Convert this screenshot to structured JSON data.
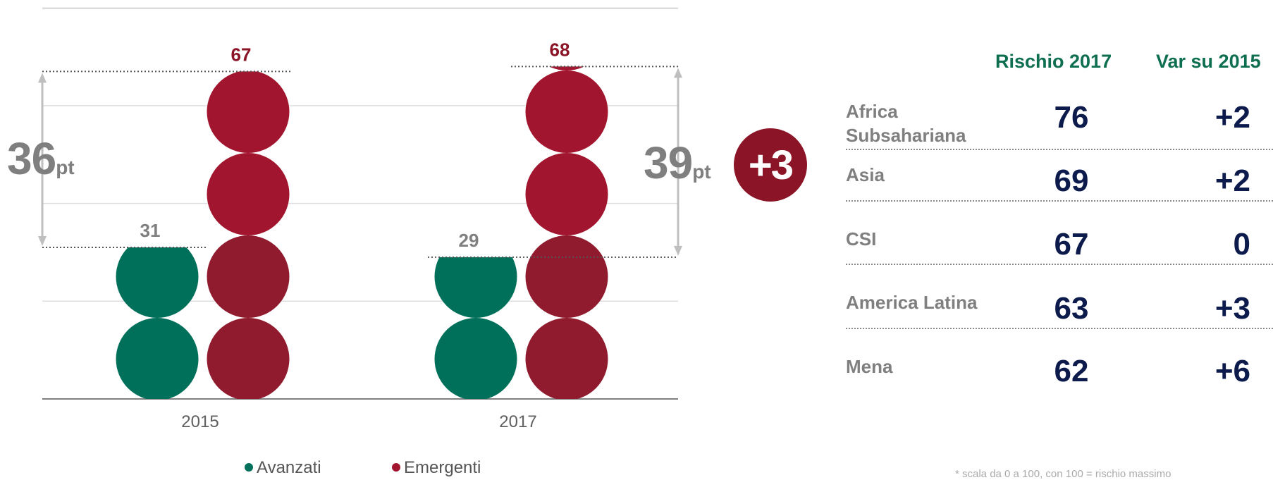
{
  "chart_data": {
    "type": "bar",
    "categories": [
      "2015",
      "2017"
    ],
    "series": [
      {
        "name": "Avanzati",
        "values": [
          31,
          29
        ],
        "color": "#00705a"
      },
      {
        "name": "Emergenti",
        "values": [
          67,
          68
        ],
        "color": "#a2152e"
      }
    ],
    "ylim": [
      0,
      80
    ],
    "grid": true,
    "legend": "bottom-center",
    "annotations": {
      "gap_2015": "36",
      "gap_2017": "39",
      "unit": "pt",
      "delta": "+3"
    }
  },
  "legend": {
    "avanzati": "Avanzati",
    "emergenti": "Emergenti"
  },
  "table": {
    "headers": {
      "risk": "Rischio 2017",
      "var": "Var su 2015"
    },
    "rows": [
      {
        "name": "Africa Subsahariana",
        "risk": "76",
        "var": "+2"
      },
      {
        "name": "Asia",
        "risk": "69",
        "var": "+2"
      },
      {
        "name": "CSI",
        "risk": "67",
        "var": "0"
      },
      {
        "name": "America Latina",
        "risk": "63",
        "var": "+3"
      },
      {
        "name": "Mena",
        "risk": "62",
        "var": "+6"
      }
    ]
  },
  "footnote": "* scala da 0 a 100, con 100 = rischio massimo"
}
